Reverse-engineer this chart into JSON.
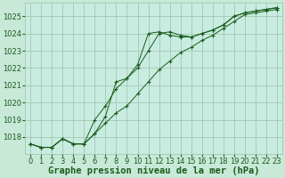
{
  "title": "Graphe pression niveau de la mer (hPa)",
  "bg_color": "#c8e8d8",
  "plot_bg_color": "#c8ece0",
  "line_color": "#1a5c1a",
  "grid_color": "#9dbfaa",
  "x_values": [
    0,
    1,
    2,
    3,
    4,
    5,
    6,
    7,
    8,
    9,
    10,
    11,
    12,
    13,
    14,
    15,
    16,
    17,
    18,
    19,
    20,
    21,
    22,
    23
  ],
  "line1": [
    1017.6,
    1017.4,
    1017.4,
    1017.9,
    1017.6,
    1017.6,
    1019.0,
    1019.8,
    1020.8,
    1021.4,
    1022.0,
    1023.0,
    1024.0,
    1024.1,
    1023.9,
    1023.8,
    1024.0,
    1024.2,
    1024.5,
    1025.0,
    1025.2,
    1025.3,
    1025.4,
    1025.5
  ],
  "line2": [
    1017.6,
    1017.4,
    1017.4,
    1017.9,
    1017.6,
    1017.6,
    1018.2,
    1019.2,
    1021.2,
    1021.4,
    1022.2,
    1024.0,
    1024.1,
    1023.9,
    1023.8,
    1023.8,
    1024.0,
    1024.2,
    1024.5,
    1025.0,
    1025.2,
    1025.3,
    1025.4,
    1025.5
  ],
  "line3": [
    1017.6,
    1017.4,
    1017.4,
    1017.9,
    1017.6,
    1017.6,
    1018.2,
    1018.8,
    1019.4,
    1019.8,
    1020.5,
    1021.2,
    1021.9,
    1022.4,
    1022.9,
    1023.2,
    1023.6,
    1023.9,
    1024.3,
    1024.7,
    1025.1,
    1025.2,
    1025.3,
    1025.4
  ],
  "ylim": [
    1017.0,
    1025.8
  ],
  "yticks": [
    1018,
    1019,
    1020,
    1021,
    1022,
    1023,
    1024,
    1025
  ],
  "xlim": [
    -0.5,
    23.5
  ],
  "xticks": [
    0,
    1,
    2,
    3,
    4,
    5,
    6,
    7,
    8,
    9,
    10,
    11,
    12,
    13,
    14,
    15,
    16,
    17,
    18,
    19,
    20,
    21,
    22,
    23
  ],
  "title_fontsize": 7.5,
  "tick_fontsize": 6,
  "title_color": "#1a5c1a",
  "xlabel_pad": 1
}
